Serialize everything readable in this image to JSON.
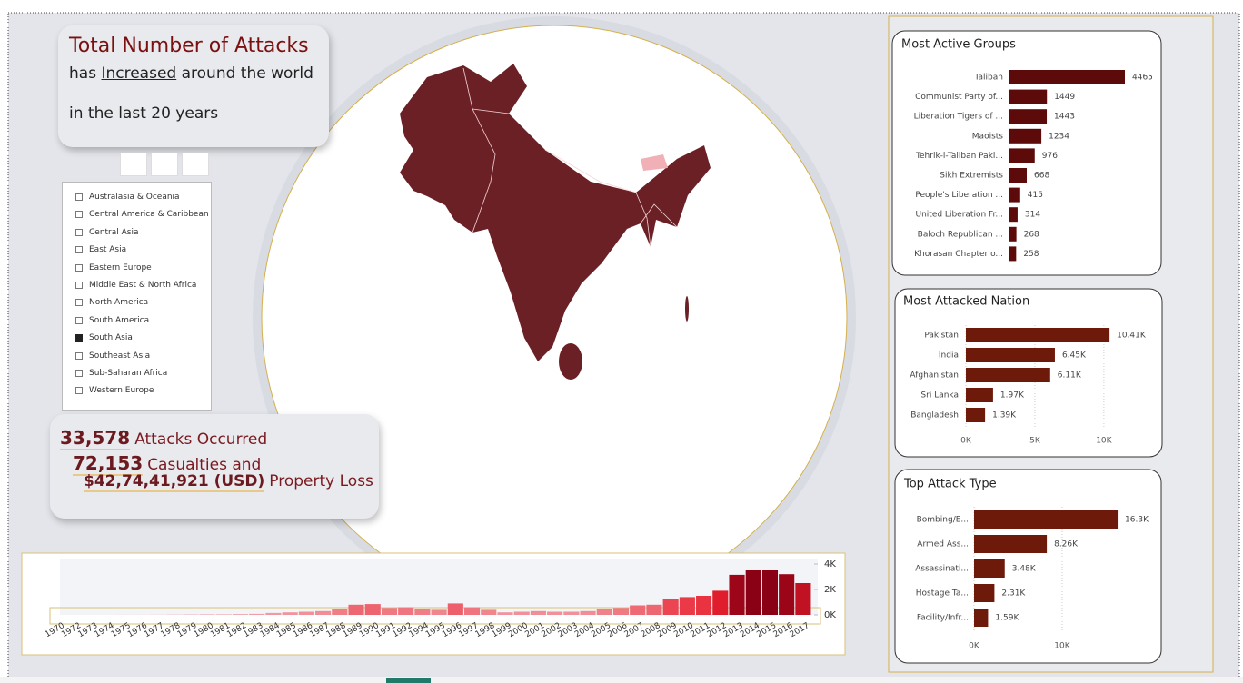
{
  "headline": {
    "title": "Total Number of Attacks",
    "pre": "has",
    "underlined": "Increased",
    "post": "around the world",
    "line2": "in the last 20 years"
  },
  "slicer": {
    "items": [
      {
        "label": "Australasia & Oceania",
        "checked": false
      },
      {
        "label": "Central America & Caribbean",
        "checked": false
      },
      {
        "label": "Central Asia",
        "checked": false
      },
      {
        "label": "East Asia",
        "checked": false
      },
      {
        "label": "Eastern Europe",
        "checked": false
      },
      {
        "label": "Middle East & North Africa",
        "checked": false
      },
      {
        "label": "North America",
        "checked": false
      },
      {
        "label": "South America",
        "checked": false
      },
      {
        "label": "South Asia",
        "checked": true
      },
      {
        "label": "Southeast Asia",
        "checked": false
      },
      {
        "label": "Sub-Saharan Africa",
        "checked": false
      },
      {
        "label": "Western Europe",
        "checked": false
      }
    ]
  },
  "kpis": [
    {
      "value": "33,578",
      "label": "Attacks Occurred"
    },
    {
      "value": "72,153",
      "label": "Casualties and"
    },
    {
      "value": "$42,74,41,921 (USD)",
      "label": "Property Loss"
    }
  ],
  "chart_data": [
    {
      "type": "hbar",
      "title": "Most Active Groups",
      "color": "#5c0a0a",
      "categories": [
        "Taliban",
        "Communist Party of...",
        "Liberation Tigers of ...",
        "Maoists",
        "Tehrik-i-Taliban Paki...",
        "Sikh Extremists",
        "People's Liberation ...",
        "United Liberation Fr...",
        "Baloch Republican ...",
        "Khorasan Chapter o..."
      ],
      "values": [
        4465,
        1449,
        1443,
        1234,
        976,
        668,
        415,
        314,
        268,
        258
      ]
    },
    {
      "type": "hbar",
      "title": "Most Attacked Nation",
      "color": "#6e1a0a",
      "categories": [
        "Pakistan",
        "India",
        "Afghanistan",
        "Sri Lanka",
        "Bangladesh"
      ],
      "values": [
        10410,
        6450,
        6110,
        1970,
        1390
      ],
      "value_labels": [
        "10.41K",
        "6.45K",
        "6.11K",
        "1.97K",
        "1.39K"
      ],
      "xlim": [
        0,
        10600
      ],
      "xticks": [
        {
          "value": 0,
          "label": "0K"
        },
        {
          "value": 5000,
          "label": "5K"
        },
        {
          "value": 10000,
          "label": "10K"
        }
      ],
      "grid": true
    },
    {
      "type": "hbar",
      "title": "Top Attack Type",
      "color": "#6e1a0a",
      "categories": [
        "Bombing/E...",
        "Armed Ass...",
        "Assassinati...",
        "Hostage Ta...",
        "Facility/Infr..."
      ],
      "values": [
        16300,
        8260,
        3480,
        2310,
        1590
      ],
      "value_labels": [
        "16.3K",
        "8.26K",
        "3.48K",
        "2.31K",
        "1.59K"
      ],
      "xlim": [
        0,
        16500
      ],
      "xticks": [
        {
          "value": 0,
          "label": "0K"
        },
        {
          "value": 10000,
          "label": "10K"
        }
      ],
      "grid": true
    },
    {
      "type": "bar",
      "color_scale": [
        "#f2a3ab",
        "#e8202e",
        "#8a0014"
      ],
      "categories": [
        "1970",
        "1972",
        "1973",
        "1974",
        "1975",
        "1976",
        "1977",
        "1978",
        "1979",
        "1980",
        "1981",
        "1982",
        "1983",
        "1984",
        "1985",
        "1986",
        "1987",
        "1988",
        "1989",
        "1990",
        "1991",
        "1992",
        "1994",
        "1995",
        "1996",
        "1997",
        "1998",
        "1999",
        "2000",
        "2001",
        "2002",
        "2003",
        "2004",
        "2005",
        "2006",
        "2007",
        "2008",
        "2009",
        "2010",
        "2011",
        "2012",
        "2013",
        "2014",
        "2015",
        "2016",
        "2017"
      ],
      "values": [
        1,
        1,
        1,
        2,
        5,
        5,
        10,
        20,
        30,
        40,
        40,
        60,
        80,
        150,
        200,
        250,
        300,
        500,
        800,
        850,
        550,
        600,
        500,
        400,
        900,
        600,
        400,
        200,
        250,
        300,
        250,
        250,
        300,
        450,
        550,
        750,
        800,
        1250,
        1400,
        1500,
        1900,
        3150,
        3500,
        3500,
        3200,
        2500
      ],
      "ylim": [
        0,
        4400
      ],
      "yticks": [
        {
          "value": 0,
          "label": "0K"
        },
        {
          "value": 2000,
          "label": "2K"
        },
        {
          "value": 4000,
          "label": "4K"
        }
      ]
    }
  ]
}
